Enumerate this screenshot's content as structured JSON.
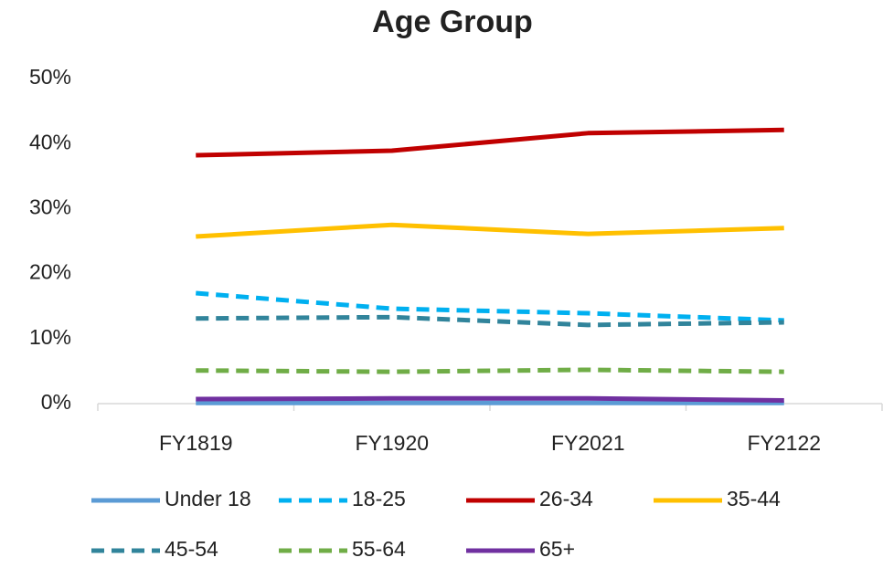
{
  "chart_data": {
    "type": "line",
    "title": "Age Group",
    "categories": [
      "FY1819",
      "FY1920",
      "FY2021",
      "FY2122"
    ],
    "series": [
      {
        "name": "Under 18",
        "color": "#5b9bd5",
        "dashed": false,
        "values": [
          0.1,
          0.1,
          0.1,
          0.1
        ]
      },
      {
        "name": "18-25",
        "color": "#00b0f0",
        "dashed": true,
        "values": [
          17.0,
          14.6,
          13.9,
          12.8
        ]
      },
      {
        "name": "26-34",
        "color": "#c00000",
        "dashed": false,
        "values": [
          38.2,
          38.9,
          41.6,
          42.1
        ]
      },
      {
        "name": "35-44",
        "color": "#ffc000",
        "dashed": false,
        "values": [
          25.7,
          27.5,
          26.1,
          27.0
        ]
      },
      {
        "name": "45-54",
        "color": "#31849b",
        "dashed": true,
        "values": [
          13.1,
          13.3,
          12.1,
          12.5
        ]
      },
      {
        "name": "55-64",
        "color": "#70ad47",
        "dashed": true,
        "values": [
          5.1,
          4.9,
          5.2,
          4.9
        ]
      },
      {
        "name": "65+",
        "color": "#7030a0",
        "dashed": false,
        "values": [
          0.7,
          0.8,
          0.8,
          0.5
        ]
      }
    ],
    "ylim": [
      0,
      50
    ],
    "yticks": [
      {
        "value": 0,
        "label": "0%"
      },
      {
        "value": 10,
        "label": "10%"
      },
      {
        "value": 20,
        "label": "20%"
      },
      {
        "value": 30,
        "label": "30%"
      },
      {
        "value": 40,
        "label": "40%"
      },
      {
        "value": 50,
        "label": "50%"
      }
    ],
    "grid": false,
    "legend": "bottom"
  }
}
